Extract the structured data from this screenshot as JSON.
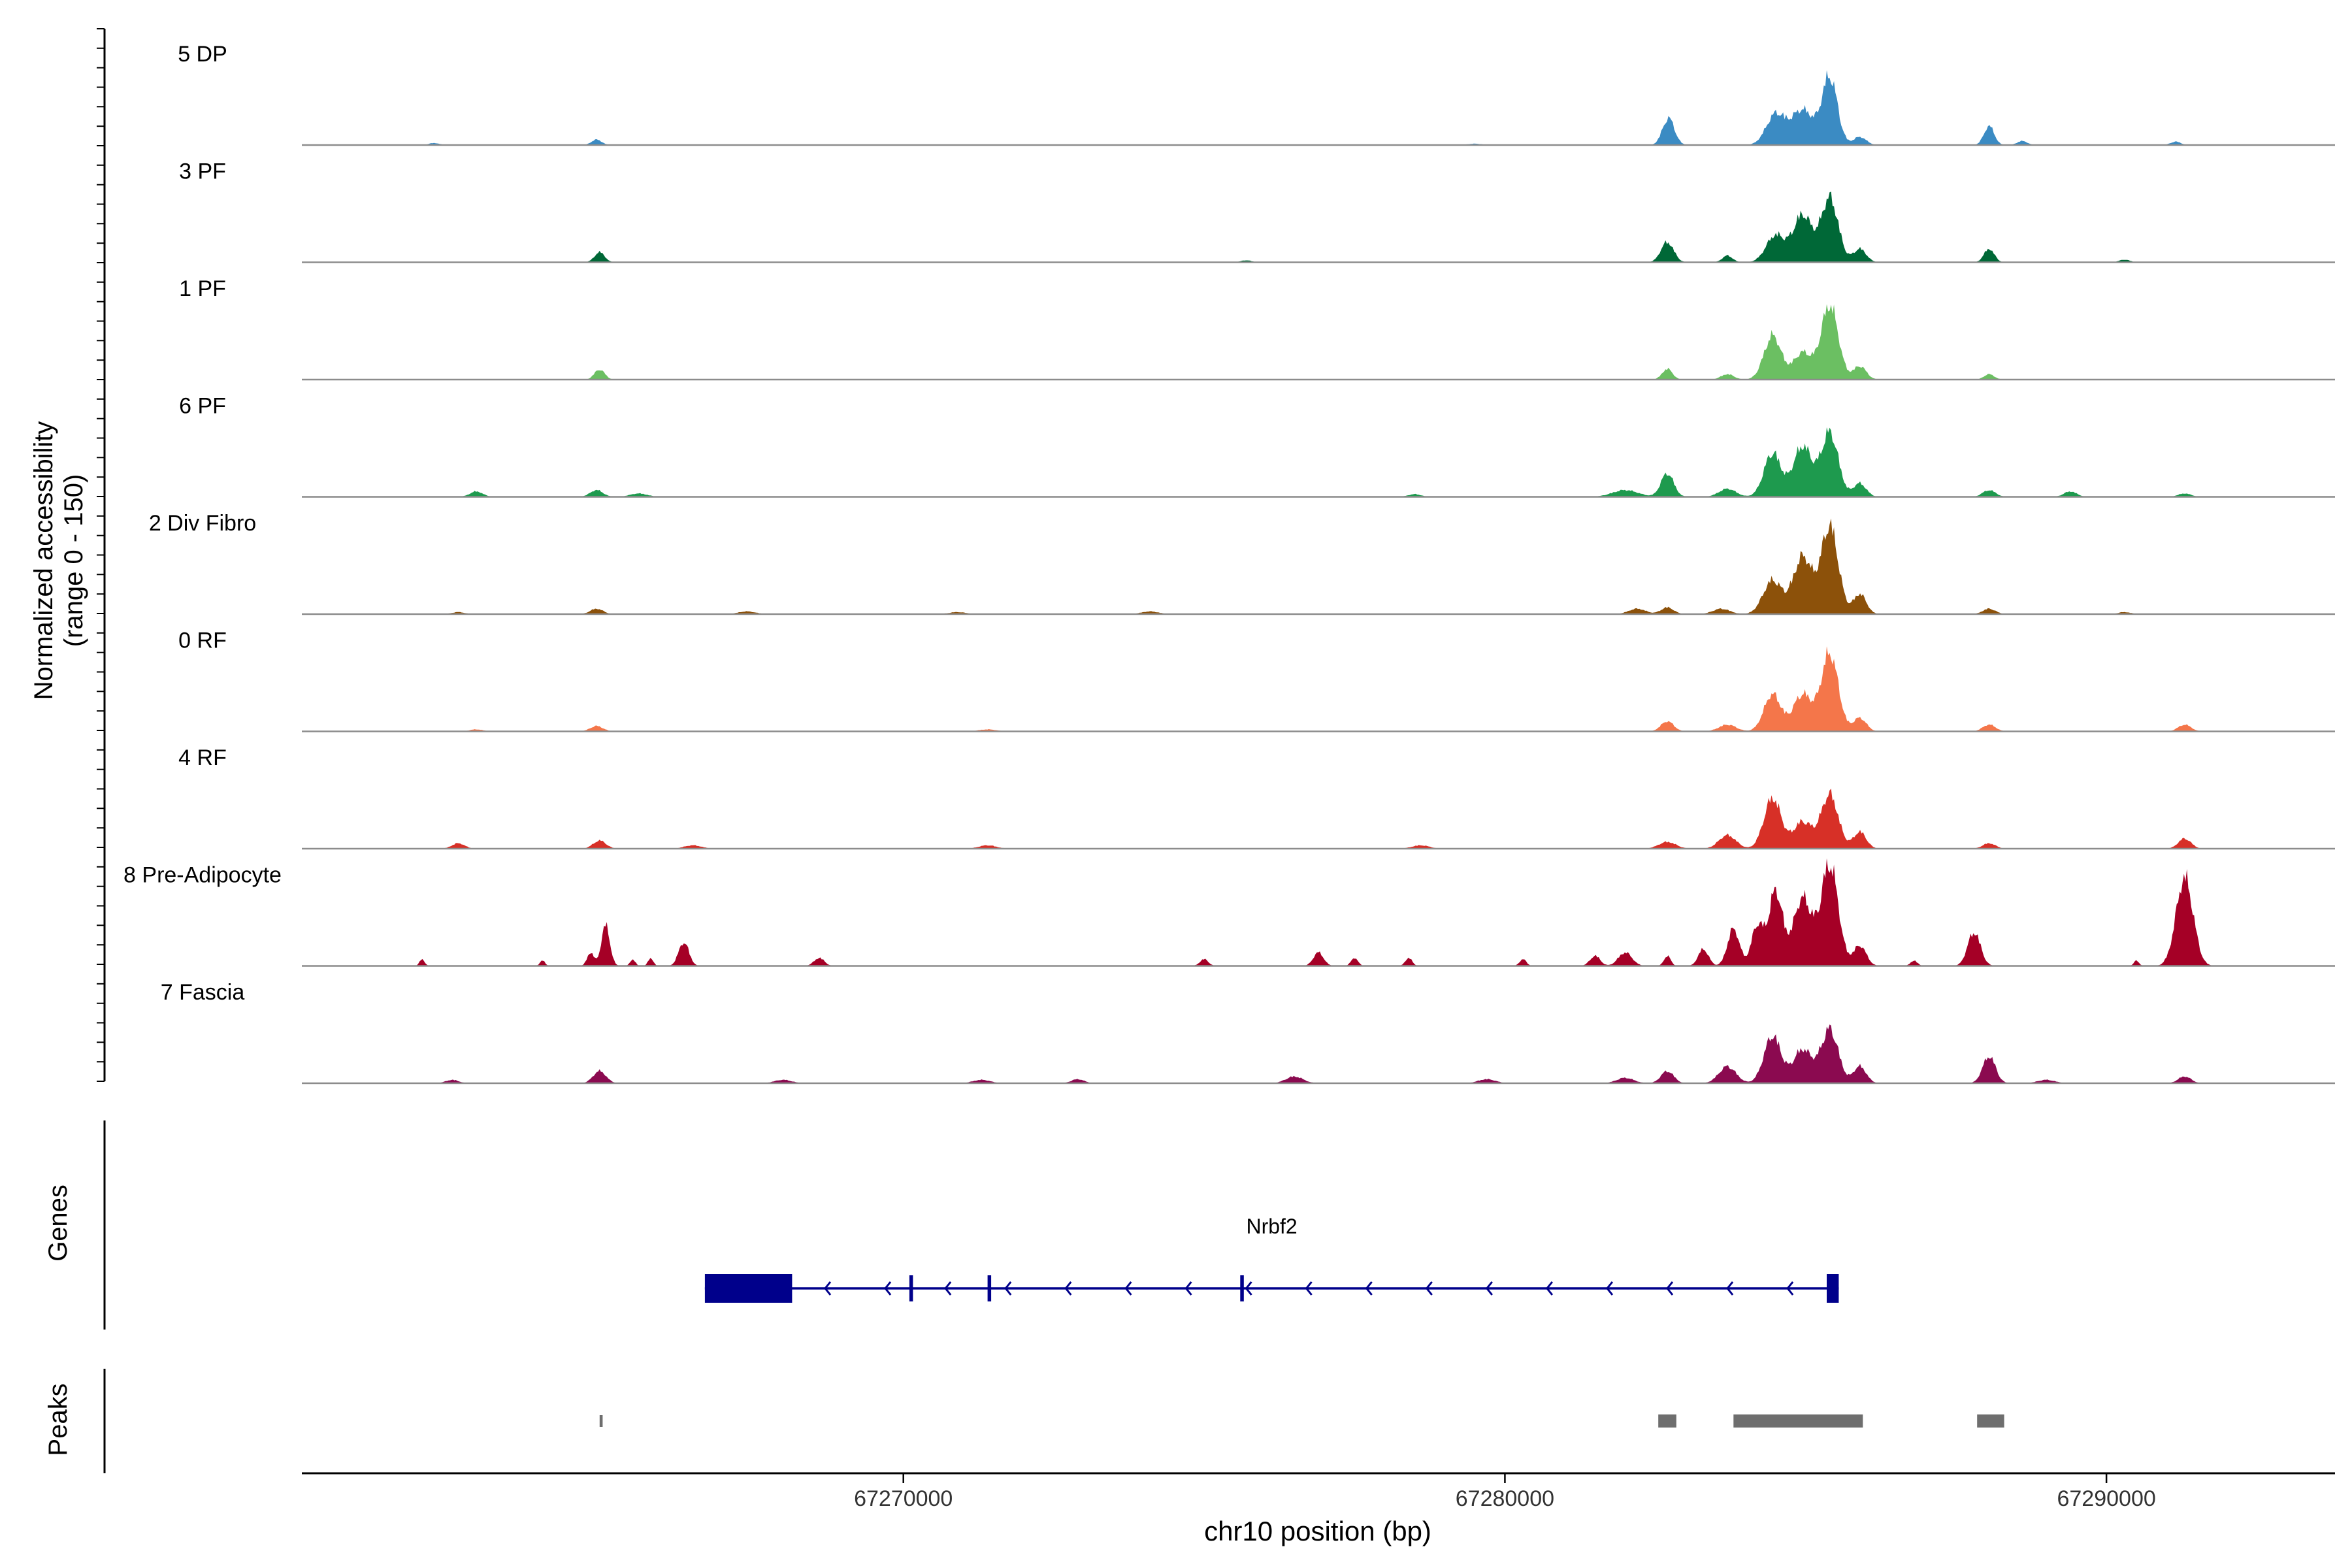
{
  "chart_data": {
    "type": "area",
    "title": "",
    "xlabel": "chr10 position (bp)",
    "xlim": [
      67260000,
      67293800
    ],
    "x_ticks": [
      67270000,
      67280000,
      67290000
    ],
    "x_tick_labels": [
      "67270000",
      "67280000",
      "67290000"
    ],
    "ylabel_line1": "Normalized accessibility",
    "ylabel_line2": "(range 0 - 150)",
    "ylim": [
      0,
      150
    ],
    "grid": false,
    "legend": "none",
    "panel_labels": {
      "genes": "Genes",
      "peaks": "Peaks"
    },
    "tracks": [
      {
        "name": "5 DP",
        "color": "#3b8bc3",
        "peaks": [
          [
            67262200,
            3,
            120
          ],
          [
            67264900,
            8,
            120
          ],
          [
            67279500,
            2,
            160
          ],
          [
            67282720,
            40,
            140
          ],
          [
            67284500,
            45,
            220
          ],
          [
            67284950,
            52,
            260
          ],
          [
            67285400,
            100,
            180
          ],
          [
            67285900,
            12,
            150
          ],
          [
            67288050,
            28,
            120
          ],
          [
            67288600,
            6,
            120
          ],
          [
            67291150,
            5,
            120
          ]
        ]
      },
      {
        "name": "3 PF",
        "color": "#006837",
        "peaks": [
          [
            67264950,
            15,
            120
          ],
          [
            67275700,
            3,
            120
          ],
          [
            67282700,
            30,
            150
          ],
          [
            67283700,
            10,
            120
          ],
          [
            67284500,
            40,
            220
          ],
          [
            67284950,
            70,
            220
          ],
          [
            67285400,
            95,
            200
          ],
          [
            67285900,
            20,
            150
          ],
          [
            67288050,
            20,
            120
          ],
          [
            67290300,
            4,
            120
          ]
        ]
      },
      {
        "name": "1 PF",
        "color": "#6bbf62",
        "peaks": [
          [
            67264950,
            15,
            120
          ],
          [
            67282700,
            16,
            120
          ],
          [
            67283700,
            8,
            150
          ],
          [
            67284450,
            65,
            200
          ],
          [
            67284950,
            40,
            220
          ],
          [
            67285400,
            110,
            200
          ],
          [
            67285900,
            20,
            150
          ],
          [
            67288050,
            8,
            120
          ]
        ]
      },
      {
        "name": "6 PF",
        "color": "#1e9a4e",
        "peaks": [
          [
            67262900,
            8,
            150
          ],
          [
            67264900,
            10,
            150
          ],
          [
            67265600,
            5,
            200
          ],
          [
            67278500,
            4,
            150
          ],
          [
            67282000,
            10,
            300
          ],
          [
            67282700,
            35,
            150
          ],
          [
            67283700,
            12,
            200
          ],
          [
            67284450,
            65,
            200
          ],
          [
            67284950,
            75,
            220
          ],
          [
            67285400,
            95,
            200
          ],
          [
            67285900,
            20,
            150
          ],
          [
            67288050,
            10,
            150
          ],
          [
            67289400,
            8,
            150
          ],
          [
            67291300,
            5,
            150
          ]
        ]
      },
      {
        "name": "2 Div Fibro",
        "color": "#8c510a",
        "peaks": [
          [
            67262600,
            3,
            150
          ],
          [
            67264900,
            8,
            150
          ],
          [
            67267400,
            4,
            200
          ],
          [
            67270900,
            3,
            200
          ],
          [
            67274100,
            4,
            200
          ],
          [
            67282200,
            8,
            200
          ],
          [
            67282700,
            10,
            150
          ],
          [
            67283600,
            8,
            200
          ],
          [
            67284450,
            50,
            220
          ],
          [
            67284950,
            85,
            220
          ],
          [
            67285400,
            130,
            200
          ],
          [
            67285900,
            30,
            150
          ],
          [
            67288050,
            8,
            150
          ],
          [
            67290300,
            3,
            150
          ]
        ]
      },
      {
        "name": "0 RF",
        "color": "#f4764a",
        "peaks": [
          [
            67262900,
            3,
            150
          ],
          [
            67264900,
            8,
            150
          ],
          [
            67271400,
            3,
            200
          ],
          [
            67282700,
            15,
            150
          ],
          [
            67283700,
            10,
            200
          ],
          [
            67284450,
            55,
            200
          ],
          [
            67284950,
            55,
            220
          ],
          [
            67285400,
            115,
            200
          ],
          [
            67285900,
            20,
            150
          ],
          [
            67288050,
            10,
            150
          ],
          [
            67291300,
            10,
            150
          ]
        ]
      },
      {
        "name": "4 RF",
        "color": "#d73027",
        "peaks": [
          [
            67262600,
            8,
            150
          ],
          [
            67264950,
            12,
            150
          ],
          [
            67266500,
            5,
            200
          ],
          [
            67271400,
            5,
            200
          ],
          [
            67278600,
            5,
            200
          ],
          [
            67282700,
            10,
            200
          ],
          [
            67283700,
            20,
            200
          ],
          [
            67284450,
            75,
            200
          ],
          [
            67284950,
            40,
            220
          ],
          [
            67285400,
            80,
            200
          ],
          [
            67285900,
            25,
            150
          ],
          [
            67288050,
            8,
            150
          ],
          [
            67291300,
            15,
            150
          ]
        ]
      },
      {
        "name": "8 Pre-Adipocyte",
        "color": "#a50026",
        "peaks": [
          [
            67262000,
            10,
            60
          ],
          [
            67264000,
            8,
            60
          ],
          [
            67264800,
            20,
            80
          ],
          [
            67265050,
            60,
            100
          ],
          [
            67265500,
            10,
            60
          ],
          [
            67265800,
            12,
            60
          ],
          [
            67266350,
            35,
            120
          ],
          [
            67268600,
            12,
            120
          ],
          [
            67275000,
            10,
            100
          ],
          [
            67276900,
            20,
            120
          ],
          [
            67277500,
            12,
            80
          ],
          [
            67278400,
            12,
            80
          ],
          [
            67280300,
            10,
            80
          ],
          [
            67281500,
            15,
            120
          ],
          [
            67282000,
            20,
            160
          ],
          [
            67282700,
            15,
            80
          ],
          [
            67283300,
            25,
            120
          ],
          [
            67283800,
            55,
            140
          ],
          [
            67284200,
            60,
            140
          ],
          [
            67284500,
            110,
            160
          ],
          [
            67284950,
            100,
            220
          ],
          [
            67285400,
            150,
            200
          ],
          [
            67285900,
            30,
            150
          ],
          [
            67286800,
            8,
            80
          ],
          [
            67287800,
            50,
            150
          ],
          [
            67290500,
            8,
            60
          ],
          [
            67291300,
            130,
            200
          ]
        ]
      },
      {
        "name": "7 Fascia",
        "color": "#8b0a50",
        "peaks": [
          [
            67262500,
            5,
            150
          ],
          [
            67264950,
            18,
            150
          ],
          [
            67268000,
            5,
            200
          ],
          [
            67271300,
            5,
            200
          ],
          [
            67272900,
            6,
            150
          ],
          [
            67276500,
            10,
            200
          ],
          [
            67279700,
            6,
            200
          ],
          [
            67282000,
            8,
            200
          ],
          [
            67282700,
            18,
            150
          ],
          [
            67283700,
            25,
            200
          ],
          [
            67284450,
            70,
            200
          ],
          [
            67284950,
            50,
            220
          ],
          [
            67285400,
            80,
            200
          ],
          [
            67285900,
            25,
            150
          ],
          [
            67288050,
            40,
            150
          ],
          [
            67289000,
            5,
            200
          ],
          [
            67291300,
            10,
            150
          ]
        ]
      }
    ],
    "gene": {
      "name": "Nrbf2",
      "strand": "-",
      "start": 67266700,
      "end": 67285550,
      "exons": [
        [
          67266700,
          67268150
        ],
        [
          67270100,
          67270160
        ],
        [
          67271400,
          67271460
        ],
        [
          67275600,
          67275660
        ],
        [
          67285350,
          67285550
        ]
      ]
    },
    "peak_regions": [
      [
        67264950,
        67265000
      ],
      [
        67282550,
        67282850
      ],
      [
        67283800,
        67285950
      ],
      [
        67287850,
        67288300
      ]
    ]
  }
}
